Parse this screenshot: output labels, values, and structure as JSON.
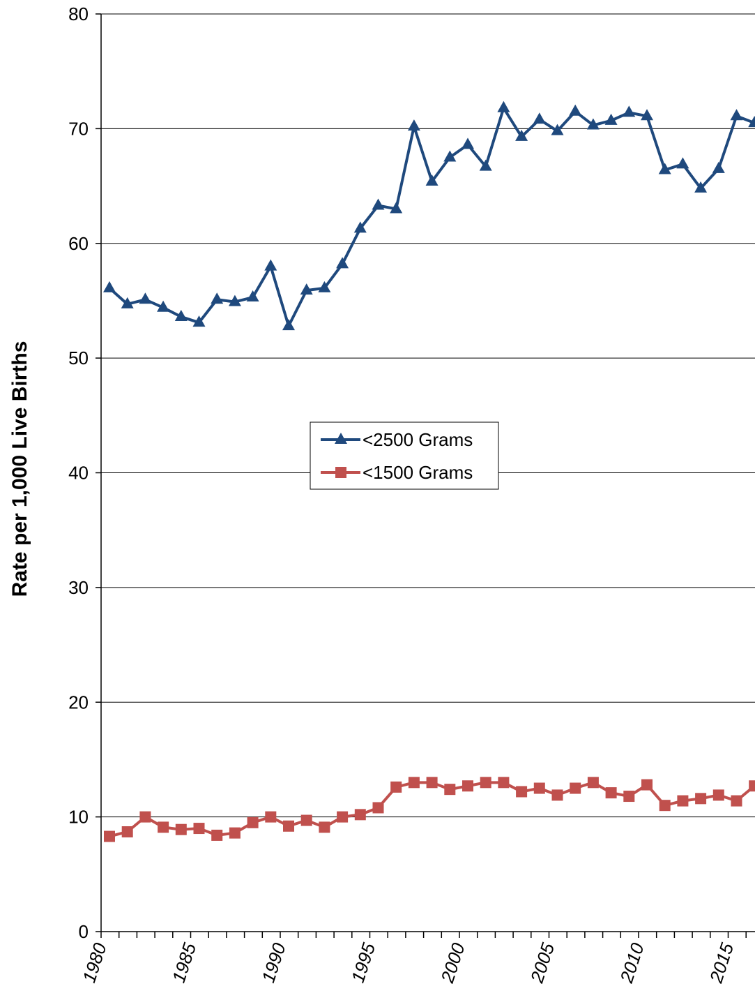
{
  "chart_data": {
    "type": "line",
    "title": "",
    "xlabel": "",
    "ylabel": "Rate per 1,000 Live Births",
    "ylim": [
      0,
      80
    ],
    "yticks": [
      "0",
      "10",
      "20",
      "30",
      "40",
      "50",
      "60",
      "70",
      "80"
    ],
    "xlim": [
      1980,
      2016
    ],
    "xticks": [
      "1980",
      "1985",
      "1990",
      "1995",
      "2000",
      "2005",
      "2010",
      "2015"
    ],
    "grid": "horizontal",
    "legend_position": "center",
    "x": [
      1980,
      1981,
      1982,
      1983,
      1984,
      1985,
      1986,
      1987,
      1988,
      1989,
      1990,
      1991,
      1992,
      1993,
      1994,
      1995,
      1996,
      1997,
      1998,
      1999,
      2000,
      2001,
      2002,
      2003,
      2004,
      2005,
      2006,
      2007,
      2008,
      2009,
      2010,
      2011,
      2012,
      2013,
      2014,
      2015,
      2016
    ],
    "series": [
      {
        "name": "<2500 Grams",
        "color": "#1f497d",
        "marker": "triangle",
        "values": [
          56.1,
          54.7,
          55.1,
          54.4,
          53.6,
          53.1,
          55.1,
          54.9,
          55.3,
          58.0,
          52.8,
          55.9,
          56.1,
          58.2,
          61.3,
          63.3,
          63.0,
          70.2,
          65.4,
          67.5,
          68.6,
          66.7,
          71.8,
          69.3,
          70.8,
          69.8,
          71.5,
          70.3,
          70.7,
          71.4,
          71.1,
          66.4,
          66.9,
          64.8,
          66.5,
          71.1,
          70.5
        ]
      },
      {
        "name": "<1500 Grams",
        "color": "#c0504d",
        "marker": "square",
        "values": [
          8.3,
          8.7,
          10.0,
          9.1,
          8.9,
          9.0,
          8.4,
          8.6,
          9.5,
          10.0,
          9.2,
          9.7,
          9.1,
          10.0,
          10.2,
          10.8,
          12.6,
          13.0,
          13.0,
          12.4,
          12.7,
          13.0,
          13.0,
          12.2,
          12.5,
          11.9,
          12.5,
          13.0,
          12.1,
          11.8,
          12.8,
          11.0,
          11.4,
          11.6,
          11.9,
          11.4,
          12.7
        ]
      }
    ]
  }
}
